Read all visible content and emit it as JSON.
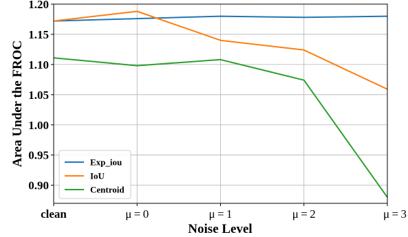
{
  "chart_data": {
    "type": "line",
    "xlabel": "Noise Level",
    "ylabel": "Area Under the FROC",
    "categories": [
      "clean",
      "μ = 0",
      "μ = 1",
      "μ = 2",
      "μ = 3"
    ],
    "ylim": [
      0.87,
      1.2
    ],
    "yticks": [
      "0.90",
      "0.95",
      "1.00",
      "1.05",
      "1.10",
      "1.15",
      "1.20"
    ],
    "grid": true,
    "legend_position": "lower-left",
    "series": [
      {
        "name": "Exp_iou",
        "color": "#1f77b4",
        "values": [
          1.172,
          1.176,
          1.18,
          1.178,
          1.18
        ]
      },
      {
        "name": "IoU",
        "color": "#ff7f0e",
        "values": [
          1.172,
          1.188,
          1.14,
          1.124,
          1.059
        ]
      },
      {
        "name": "Centroid",
        "color": "#2ca02c",
        "values": [
          1.111,
          1.098,
          1.108,
          1.074,
          0.88
        ]
      }
    ]
  }
}
